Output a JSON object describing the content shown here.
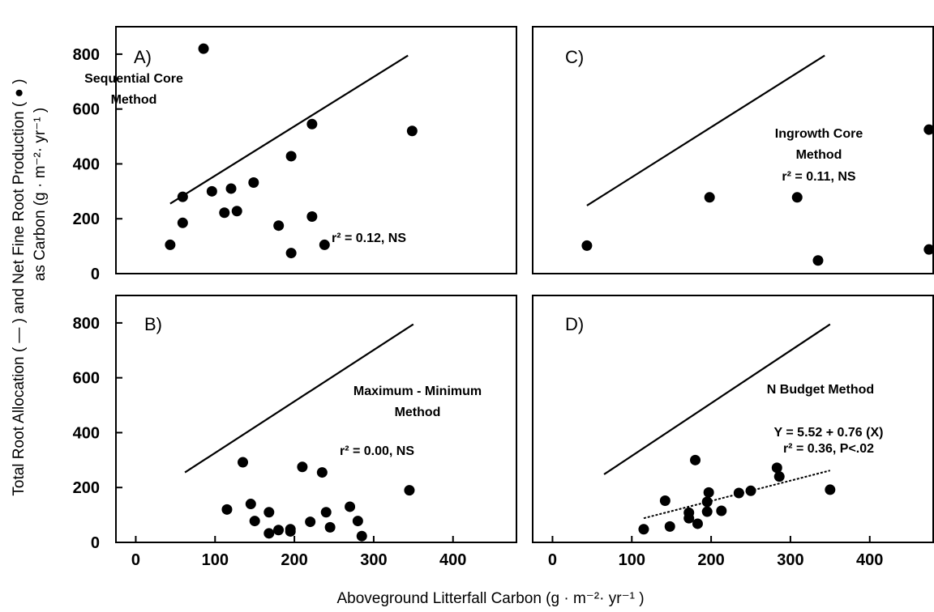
{
  "y_axis_title_line1": "Total Root Allocation ( — ) and Net Fine Root Production ( ● )",
  "y_axis_title_line2": "as Carbon  (g · m⁻²· yr⁻¹ )",
  "x_axis_title": "Aboveground Litterfall Carbon  (g · m⁻²· yr⁻¹ )",
  "chart_data": [
    {
      "type": "scatter",
      "panel": "A)",
      "method_line1": "Sequential Core",
      "method_line2": "Method",
      "stats_line1": "r² = 0.12, NS",
      "stats_line2": "",
      "xlim": [
        0,
        480
      ],
      "ylim": [
        0,
        900
      ],
      "xticks": [],
      "yticks": [
        0,
        200,
        400,
        600,
        800
      ],
      "xtick_labels": [],
      "ytick_labels": [
        "0",
        "200",
        "400",
        "600",
        "800"
      ],
      "grid": false,
      "total_root_allocation_line": [
        [
          65,
          255
        ],
        [
          350,
          795
        ]
      ],
      "points": [
        [
          65,
          105
        ],
        [
          80,
          280
        ],
        [
          80,
          185
        ],
        [
          105,
          820
        ],
        [
          115,
          300
        ],
        [
          130,
          222
        ],
        [
          138,
          310
        ],
        [
          145,
          228
        ],
        [
          165,
          332
        ],
        [
          195,
          175
        ],
        [
          210,
          75
        ],
        [
          210,
          428
        ],
        [
          235,
          545
        ],
        [
          235,
          208
        ],
        [
          250,
          105
        ],
        [
          355,
          520
        ]
      ]
    },
    {
      "type": "scatter",
      "panel": "C)",
      "method_line1": "Ingrowth Core",
      "method_line2": "Method",
      "stats_line1": "r² = 0.11, NS",
      "stats_line2": "",
      "xlim": [
        0,
        480
      ],
      "ylim": [
        0,
        900
      ],
      "xticks": [],
      "yticks": [],
      "xtick_labels": [],
      "ytick_labels": [],
      "grid": false,
      "total_root_allocation_line": [
        [
          65,
          248
        ],
        [
          350,
          795
        ]
      ],
      "points": [
        [
          65,
          102
        ],
        [
          212,
          278
        ],
        [
          317,
          278
        ],
        [
          342,
          48
        ],
        [
          475,
          525
        ],
        [
          475,
          88
        ]
      ]
    },
    {
      "type": "scatter",
      "panel": "B)",
      "method_line1": "Maximum - Minimum",
      "method_line2": "Method",
      "stats_line1": "r² = 0.00, NS",
      "stats_line2": "",
      "xlim": [
        -25,
        480
      ],
      "ylim": [
        0,
        900
      ],
      "xticks": [
        0,
        100,
        200,
        300,
        400
      ],
      "yticks": [
        0,
        200,
        400,
        600,
        800
      ],
      "xtick_labels": [
        "0",
        "100",
        "200",
        "300",
        "400"
      ],
      "ytick_labels": [
        "0",
        "200",
        "400",
        "600",
        "800"
      ],
      "grid": false,
      "total_root_allocation_line": [
        [
          62,
          255
        ],
        [
          350,
          795
        ]
      ],
      "points": [
        [
          115,
          120
        ],
        [
          135,
          292
        ],
        [
          145,
          140
        ],
        [
          150,
          78
        ],
        [
          168,
          110
        ],
        [
          168,
          33
        ],
        [
          180,
          45
        ],
        [
          195,
          40
        ],
        [
          195,
          48
        ],
        [
          210,
          275
        ],
        [
          220,
          75
        ],
        [
          235,
          255
        ],
        [
          240,
          110
        ],
        [
          245,
          55
        ],
        [
          270,
          130
        ],
        [
          280,
          78
        ],
        [
          285,
          23
        ],
        [
          345,
          190
        ]
      ]
    },
    {
      "type": "scatter",
      "panel": "D)",
      "method_line1": "N Budget Method",
      "method_line2": "",
      "stats_line1": "Y = 5.52 + 0.76 (X)",
      "stats_line2": "r² = 0.36, P<.02",
      "xlim": [
        -25,
        480
      ],
      "ylim": [
        0,
        900
      ],
      "xticks": [
        0,
        100,
        200,
        300,
        400
      ],
      "yticks": [],
      "xtick_labels": [
        "0",
        "100",
        "200",
        "300",
        "400"
      ],
      "ytick_labels": [],
      "grid": false,
      "total_root_allocation_line": [
        [
          65,
          248
        ],
        [
          350,
          795
        ]
      ],
      "regression_line": [
        [
          115,
          88
        ],
        [
          350,
          262
        ]
      ],
      "points": [
        [
          115,
          48
        ],
        [
          142,
          152
        ],
        [
          148,
          58
        ],
        [
          172,
          108
        ],
        [
          172,
          88
        ],
        [
          180,
          300
        ],
        [
          183,
          68
        ],
        [
          195,
          112
        ],
        [
          195,
          148
        ],
        [
          197,
          182
        ],
        [
          213,
          115
        ],
        [
          235,
          180
        ],
        [
          250,
          188
        ],
        [
          283,
          272
        ],
        [
          286,
          240
        ],
        [
          350,
          192
        ]
      ]
    }
  ]
}
